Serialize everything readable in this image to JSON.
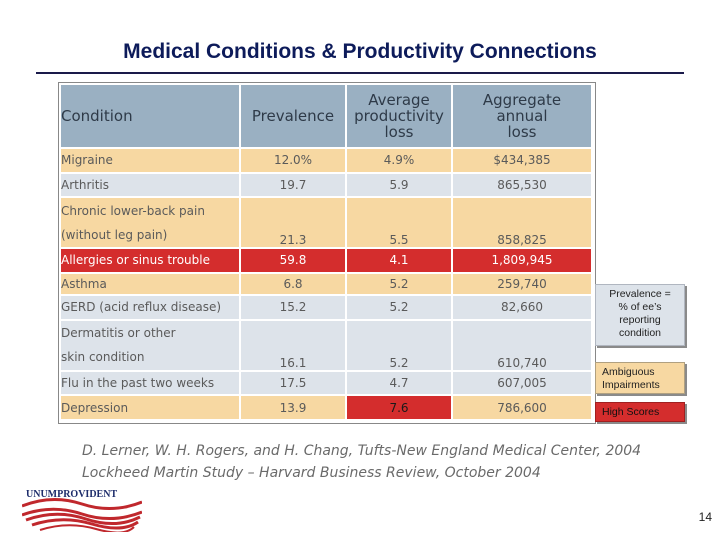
{
  "title": "Medical Conditions &  Productivity Connections",
  "table": {
    "headers": {
      "condition": "Condition",
      "prevalence": "Prevalence",
      "avg_loss": [
        "Average",
        "productivity",
        "loss"
      ],
      "agg_loss": [
        "Aggregate",
        "annual",
        "loss"
      ]
    },
    "rows": [
      {
        "condition": [
          "Migraine"
        ],
        "prevalence": "12.0%",
        "avg_loss": "4.9%",
        "agg_loss": "$434,385",
        "style": "tan"
      },
      {
        "condition": [
          "Arthritis"
        ],
        "prevalence": "19.7",
        "avg_loss": "5.9",
        "agg_loss": "865,530",
        "style": "blue"
      },
      {
        "condition": [
          "Chronic lower-back pain",
          "(without leg pain)"
        ],
        "prevalence": "21.3",
        "avg_loss": "5.5",
        "agg_loss": "858,825",
        "style": "tan"
      },
      {
        "condition": [
          "Allergies or sinus trouble"
        ],
        "prevalence": "59.8",
        "avg_loss": "4.1",
        "agg_loss": "1,809,945",
        "style": "red"
      },
      {
        "condition": [
          "Asthma"
        ],
        "prevalence": "6.8",
        "avg_loss": "5.2",
        "agg_loss": "259,740",
        "style": "tan"
      },
      {
        "condition": [
          "GERD (acid reflux disease)"
        ],
        "prevalence": "15.2",
        "avg_loss": "5.2",
        "agg_loss": "82,660",
        "style": "blue"
      },
      {
        "condition": [
          "Dermatitis or other",
          "skin condition"
        ],
        "prevalence": "16.1",
        "avg_loss": "5.2",
        "agg_loss": "610,740",
        "style": "blue"
      },
      {
        "condition": [
          "Flu in the past two weeks"
        ],
        "prevalence": "17.5",
        "avg_loss": "4.7",
        "agg_loss": "607,005",
        "style": "blue"
      },
      {
        "condition": [
          "Depression"
        ],
        "prevalence": "13.9",
        "avg_loss": "7.6",
        "agg_loss": "786,600",
        "style": "tan"
      }
    ]
  },
  "citation": {
    "line1": "D. Lerner, W. H. Rogers, and H. Chang, Tufts-New England Medical Center, 2004",
    "line2": "Lockheed Martin Study – Harvard  Business Review, October 2004"
  },
  "legend": {
    "prevalence": [
      "Prevalence =",
      "% of ee’s",
      "reporting",
      "condition"
    ],
    "ambiguous": [
      "Ambiguous",
      "Impairments"
    ],
    "high_scores": "High Scores"
  },
  "logo_text": "UNUMPROVIDENT",
  "page_number": "14",
  "colors": {
    "header_blue": "#9ab0c2",
    "row_tan": "#f7d8a2",
    "row_blue": "#dde3ea",
    "highlight_red": "#d42d2d",
    "title_navy": "#0d1b5a"
  }
}
